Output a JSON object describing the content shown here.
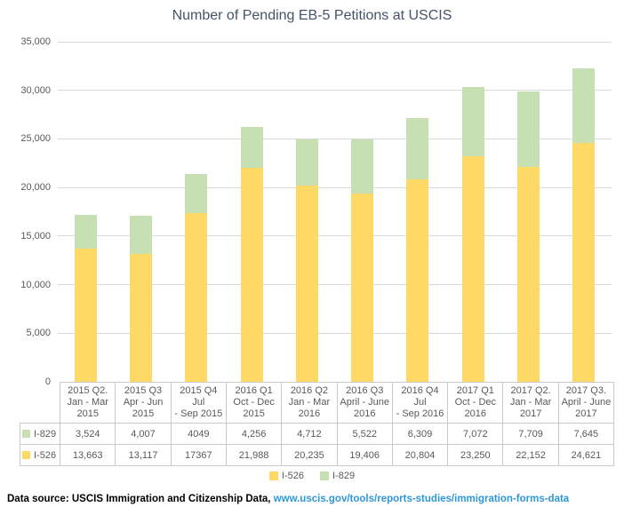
{
  "title": "Number of Pending EB-5 Petitions at USCIS",
  "chart_data": {
    "type": "bar",
    "stacked": true,
    "title": "Number of Pending EB-5 Petitions at USCIS",
    "categories": [
      "2015 Q2. Jan - Mar 2015",
      "2015 Q3 Apr - Jun 2015",
      "2015 Q4 Jul - Sep 2015",
      "2016 Q1 Oct - Dec 2015",
      "2016 Q2 Jan - Mar 2016",
      "2016 Q3 April - June 2016",
      "2016 Q4 Jul - Sep 2016",
      "2017 Q1 Oct - Dec 2016",
      "2017 Q2. Jan - Mar 2017",
      "2017 Q3. April - June 2017"
    ],
    "series": [
      {
        "name": "I-526",
        "color": "#ffd966",
        "values": [
          13663,
          13117,
          17367,
          21988,
          20235,
          19406,
          20804,
          23250,
          22152,
          24621
        ]
      },
      {
        "name": "I-829",
        "color": "#c6e0b4",
        "values": [
          3524,
          4007,
          4049,
          4256,
          4712,
          5522,
          6309,
          7072,
          7709,
          7645
        ]
      }
    ],
    "ylim": [
      0,
      35000
    ],
    "ytick_step": 5000,
    "ytick_labels": [
      "0",
      "5,000",
      "10,000",
      "15,000",
      "20,000",
      "25,000",
      "30,000",
      "35,000"
    ],
    "grid": true,
    "legend_position": "bottom"
  },
  "table": {
    "columns": [
      "2015 Q2.\nJan - Mar\n2015",
      "2015 Q3\nApr - Jun\n2015",
      "2015 Q4 Jul\n- Sep 2015",
      "2016 Q1\nOct - Dec\n2015",
      "2016 Q2\nJan - Mar\n2016",
      "2016 Q3\nApril - June\n2016",
      "2016 Q4 Jul\n- Sep 2016",
      "2017 Q1\nOct - Dec\n2016",
      "2017 Q2.\nJan - Mar\n2017",
      "2017 Q3.\nApril - June\n2017"
    ],
    "rows": [
      {
        "label": "I-829",
        "marker_color": "#c6e0b4",
        "values": [
          "3,524",
          "4,007",
          "4049",
          "4,256",
          "4,712",
          "5,522",
          "6,309",
          "7,072",
          "7,709",
          "7,645"
        ]
      },
      {
        "label": "I-526",
        "marker_color": "#ffd966",
        "values": [
          "13,663",
          "13,117",
          "17367",
          "21,988",
          "20,235",
          "19,406",
          "20,804",
          "23,250",
          "22,152",
          "24,621"
        ]
      }
    ]
  },
  "legend": {
    "items": [
      {
        "label": "I-526",
        "color": "#ffd966"
      },
      {
        "label": "I-829",
        "color": "#c6e0b4"
      }
    ]
  },
  "footer": {
    "text": "Data source: USCIS Immigration and Citizenship Data, ",
    "link_text": "www.uscis.gov/tools/reports-studies/immigration-forms-data",
    "link_color": "#2e97d5"
  },
  "colors": {
    "grid": "#d9d9d9",
    "axis_text": "#595959",
    "table_border": "#c9c9c9",
    "title": "#44546a"
  }
}
